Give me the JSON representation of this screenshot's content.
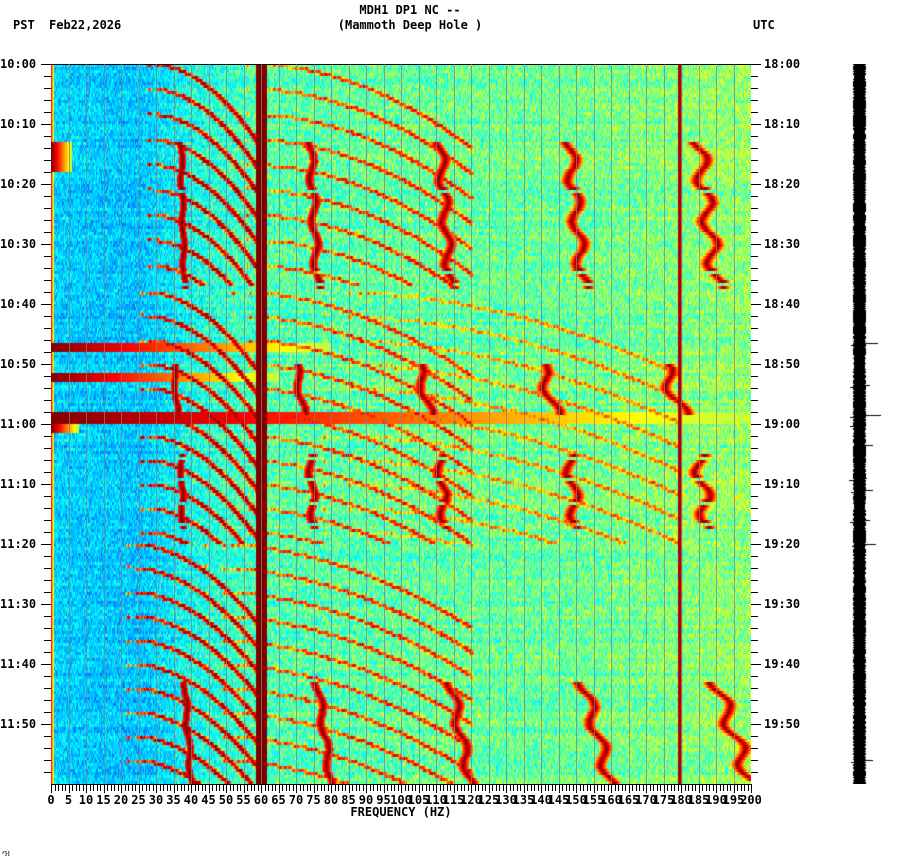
{
  "header": {
    "station_line": "MDH1 DP1 NC --",
    "site_name": "(Mammoth Deep Hole )",
    "left_timezone": "PST",
    "date": "Feb22,2026",
    "right_timezone": "UTC"
  },
  "footer": {
    "corner_mark": "ᐟℍ"
  },
  "chart_data": {
    "type": "heatmap",
    "title": "MDH1 DP1 NC -- (Mammoth Deep Hole )",
    "subtitle": "PST Feb22,2026 / UTC",
    "xlabel": "FREQUENCY (HZ)",
    "ylabel_left": "PST",
    "ylabel_right": "UTC",
    "x_range": [
      0,
      200
    ],
    "x_tick_step": 5,
    "x_ticks": [
      0,
      5,
      10,
      15,
      20,
      25,
      30,
      35,
      40,
      45,
      50,
      55,
      60,
      65,
      70,
      75,
      80,
      85,
      90,
      95,
      100,
      105,
      110,
      115,
      120,
      125,
      130,
      135,
      140,
      145,
      150,
      155,
      160,
      165,
      170,
      175,
      180,
      185,
      190,
      195,
      200
    ],
    "x_minor_tick_step": 1,
    "y_range_minutes": [
      0,
      120
    ],
    "y_ticks_left": [
      "10:00",
      "10:10",
      "10:20",
      "10:30",
      "10:40",
      "10:50",
      "11:00",
      "11:10",
      "11:20",
      "11:30",
      "11:40",
      "11:50"
    ],
    "y_ticks_right": [
      "18:00",
      "18:10",
      "18:20",
      "18:30",
      "18:40",
      "18:50",
      "19:00",
      "19:10",
      "19:20",
      "19:30",
      "19:40",
      "19:50"
    ],
    "y_minor_tick_minutes": 2,
    "vertical_gridlines_hz_step": 5,
    "colormap": [
      "#0000b4",
      "#0050ff",
      "#00b4ff",
      "#00ffff",
      "#80ff80",
      "#ffff00",
      "#ff8000",
      "#ff0000",
      "#800000"
    ],
    "background_level_by_hz": [
      {
        "hz": 0,
        "level": 0.3
      },
      {
        "hz": 25,
        "level": 0.28
      },
      {
        "hz": 40,
        "level": 0.38
      },
      {
        "hz": 60,
        "level": 0.45
      },
      {
        "hz": 100,
        "level": 0.47
      },
      {
        "hz": 150,
        "level": 0.48
      },
      {
        "hz": 200,
        "level": 0.52
      }
    ],
    "constant_lines_hz": [
      {
        "hz": 60,
        "width_hz": 1.5,
        "level": 1.0
      },
      {
        "hz": 179.5,
        "width_hz": 0.5,
        "level": 0.95
      }
    ],
    "chirp_groups": [
      {
        "start_min": 0,
        "end_min": 37,
        "start_hz": 28,
        "end_hz": 60,
        "spacing_min": 4.2,
        "count": 9,
        "harmonics": [
          1,
          2
        ]
      },
      {
        "start_min": 38,
        "end_min": 80,
        "start_hz": 26,
        "end_hz": 60,
        "spacing_min": 4.0,
        "count": 11,
        "harmonics": [
          1,
          2,
          3
        ]
      },
      {
        "start_min": 80,
        "end_min": 120,
        "start_hz": 22,
        "end_hz": 60,
        "spacing_min": 4.0,
        "count": 10,
        "harmonics": [
          1,
          2
        ]
      }
    ],
    "tonal_tracks": [
      {
        "start_min": 13,
        "end_min": 37,
        "hz_start": 37,
        "hz_end": 38,
        "harmonics": [
          1,
          2,
          3,
          4,
          5
        ]
      },
      {
        "start_min": 50,
        "end_min": 58,
        "hz_start": 35,
        "hz_end": 36,
        "harmonics": [
          1,
          2,
          3,
          4,
          5
        ]
      },
      {
        "start_min": 65,
        "end_min": 77,
        "hz_start": 37,
        "hz_end": 37.5,
        "harmonics": [
          1,
          2,
          3,
          4,
          5
        ]
      },
      {
        "start_min": 103,
        "end_min": 120,
        "hz_start": 38,
        "hz_end": 40,
        "harmonics": [
          1,
          2,
          3,
          4,
          5
        ]
      }
    ],
    "broadband_events_min": [
      {
        "min": 13,
        "duration": 5,
        "max_hz": 6
      },
      {
        "min": 46.5,
        "duration": 1.2,
        "max_hz": 80
      },
      {
        "min": 51.8,
        "duration": 1.0,
        "max_hz": 65
      },
      {
        "min": 58,
        "duration": 2,
        "max_hz": 200
      },
      {
        "min": 60,
        "duration": 1.5,
        "max_hz": 8
      }
    ]
  },
  "seismogram": {
    "events_min": [
      13,
      46.5,
      51.3,
      53.5,
      58.5,
      60,
      63.5,
      69,
      71,
      76,
      80,
      116
    ]
  }
}
